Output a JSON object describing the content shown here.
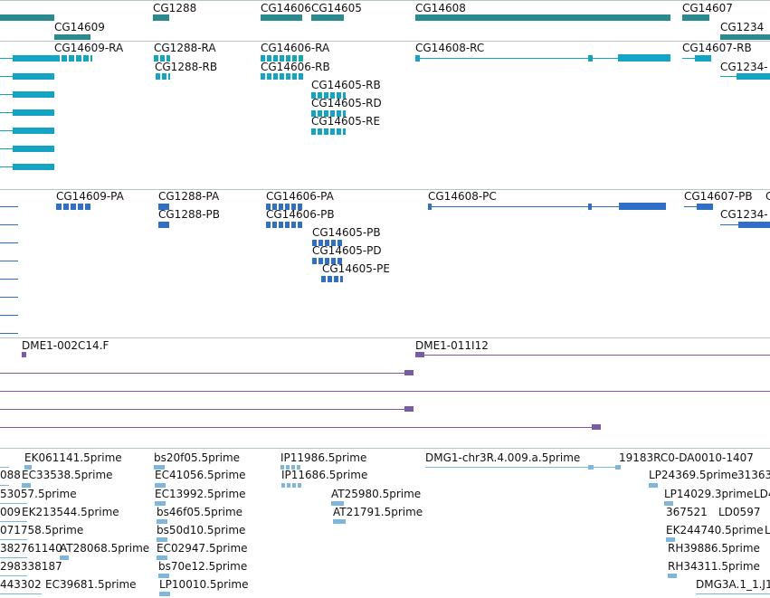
{
  "colors": {
    "gene": "#2b8a8e",
    "transcript_ra": "#13a3c4",
    "transcript_pa": "#2f6fc7",
    "clone": "#7a5aa8",
    "est": "#7fb6dd",
    "divider": "#b8c4cc"
  },
  "genes": [
    {
      "label": "CG14609"
    },
    {
      "label": "CG1288"
    },
    {
      "label": "CG14606"
    },
    {
      "label": "CG14605"
    },
    {
      "label": "CG14608"
    },
    {
      "label": "CG14607"
    },
    {
      "label": "CG1234"
    }
  ],
  "transcripts": [
    {
      "label": "CG14609-RA"
    },
    {
      "label": "CG1288-RA"
    },
    {
      "label": "CG1288-RB"
    },
    {
      "label": "CG14606-RA"
    },
    {
      "label": "CG14606-RB"
    },
    {
      "label": "CG14605-RB"
    },
    {
      "label": "CG14605-RD"
    },
    {
      "label": "CG14605-RE"
    },
    {
      "label": "CG14608-RC"
    },
    {
      "label": "CG14607-RB"
    },
    {
      "label": "CG1234-"
    }
  ],
  "proteins": [
    {
      "label": "CG14609-PA"
    },
    {
      "label": "CG1288-PA"
    },
    {
      "label": "CG1288-PB"
    },
    {
      "label": "CG14606-PA"
    },
    {
      "label": "CG14606-PB"
    },
    {
      "label": "CG14605-PB"
    },
    {
      "label": "CG14605-PD"
    },
    {
      "label": "CG14605-PE"
    },
    {
      "label": "CG14608-PC"
    },
    {
      "label": "CG14607-PB"
    },
    {
      "label": "CG1234-"
    },
    {
      "label": "C"
    }
  ],
  "clones": [
    {
      "label": "DME1-002C14.F"
    },
    {
      "label": "DME1-011I12"
    }
  ],
  "ests": [
    {
      "label": "EK061141.5prime"
    },
    {
      "label": "bs20f05.5prime"
    },
    {
      "label": "IP11986.5prime"
    },
    {
      "label": "DMG1-chr3R.4.009.a.5prime"
    },
    {
      "label": "19183RC0-DA0010-1407"
    },
    {
      "label": "088"
    },
    {
      "label": "EC33538.5prime"
    },
    {
      "label": "EC41056.5prime"
    },
    {
      "label": "IP11686.5prime"
    },
    {
      "label": "LP24369.5prime"
    },
    {
      "label": "31363"
    },
    {
      "label": "53057.5prime"
    },
    {
      "label": "EC13992.5prime"
    },
    {
      "label": "AT25980.5prime"
    },
    {
      "label": "LP14029.3prime"
    },
    {
      "label": "LD4"
    },
    {
      "label": "009"
    },
    {
      "label": "EK213544.5prime"
    },
    {
      "label": "bs46f05.5prime"
    },
    {
      "label": "AT21791.5prime"
    },
    {
      "label": "367521"
    },
    {
      "label": "LD0597"
    },
    {
      "label": "071758.5prime"
    },
    {
      "label": "bs50d10.5prime"
    },
    {
      "label": "EK244740.5prime"
    },
    {
      "label": "L"
    },
    {
      "label": "382761140"
    },
    {
      "label": "AT28068.5prime"
    },
    {
      "label": "EC02947.5prime"
    },
    {
      "label": "RH39886.5prime"
    },
    {
      "label": "298338187"
    },
    {
      "label": "bs70e12.5prime"
    },
    {
      "label": "RH34311.5prime"
    },
    {
      "label": "443302"
    },
    {
      "label": "EC39681.5prime"
    },
    {
      "label": "LP10010.5prime"
    },
    {
      "label": "DMG3A.1_1.J1"
    }
  ]
}
